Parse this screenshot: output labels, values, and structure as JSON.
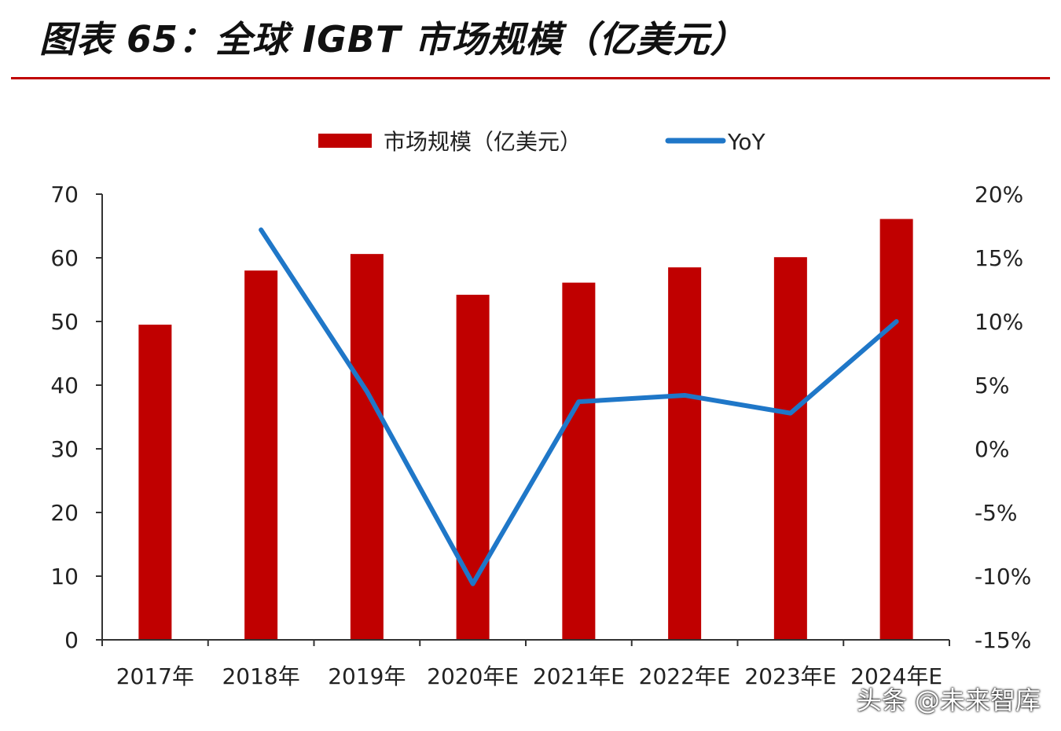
{
  "header": {
    "title": "图表 65：全球 IGBT 市场规模（亿美元）"
  },
  "watermark": "头条 @未来智库",
  "colors": {
    "bar": "#c00000",
    "line": "#1f77c8",
    "rule": "#c00000"
  },
  "chart_data": {
    "type": "bar",
    "title": "全球 IGBT 市场规模（亿美元）",
    "categories": [
      "2017年",
      "2018年",
      "2019年",
      "2020年E",
      "2021年E",
      "2022年E",
      "2023年E",
      "2024年E"
    ],
    "series": [
      {
        "name": "市场规模（亿美元）",
        "type": "bar",
        "axis": "left",
        "values": [
          49.5,
          58.0,
          60.6,
          54.2,
          56.1,
          58.5,
          60.1,
          66.1
        ]
      },
      {
        "name": "YoY",
        "type": "line",
        "axis": "right",
        "values": [
          null,
          17.2,
          4.5,
          -10.6,
          3.7,
          4.2,
          2.8,
          10.0
        ]
      }
    ],
    "y_left": {
      "range": [
        0,
        70
      ],
      "ticks": [
        0,
        10,
        20,
        30,
        40,
        50,
        60,
        70
      ],
      "tick_labels": [
        "0",
        "10",
        "20",
        "30",
        "40",
        "50",
        "60",
        "70"
      ]
    },
    "y_right": {
      "range": [
        -15,
        20
      ],
      "ticks": [
        -15,
        -10,
        -5,
        0,
        5,
        10,
        15,
        20
      ],
      "tick_labels": [
        "-15%",
        "-10%",
        "-5%",
        "0%",
        "5%",
        "10%",
        "15%",
        "20%"
      ]
    },
    "legend": {
      "position": "top-center",
      "labels": [
        "市场规模（亿美元）",
        "YoY"
      ]
    },
    "grid": false
  }
}
